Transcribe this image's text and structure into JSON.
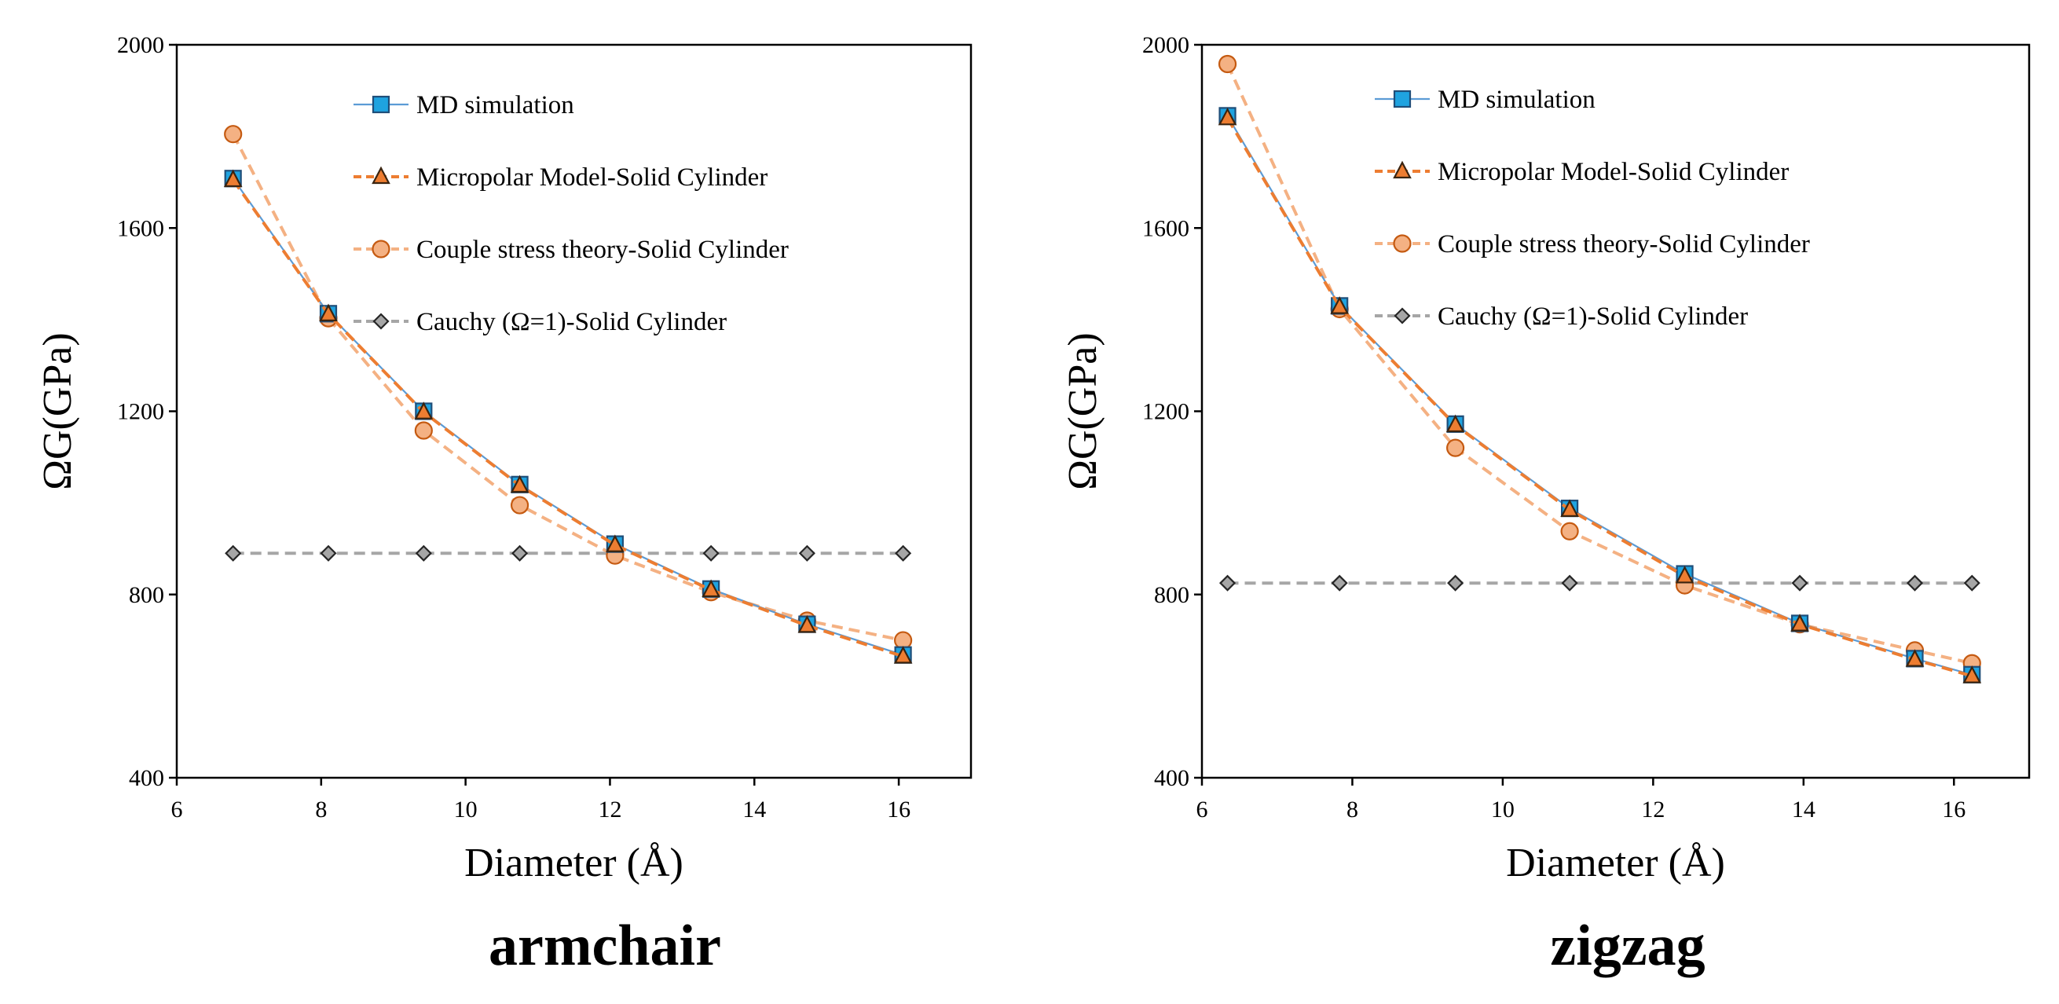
{
  "chart_data": [
    {
      "type": "line",
      "title": "armchair",
      "xlabel": "Diameter (Å)",
      "ylabel": "ΩG(GPa)",
      "xlim": [
        6,
        17
      ],
      "ylim": [
        400,
        2000
      ],
      "xticks": [
        6,
        8,
        10,
        12,
        14,
        16
      ],
      "yticks": [
        400,
        800,
        1200,
        1600,
        2000
      ],
      "grid": false,
      "legend_position": "top-right",
      "series": [
        {
          "name": "MD simulation",
          "style": "md",
          "x": [
            6.78,
            8.1,
            9.42,
            10.75,
            12.07,
            13.4,
            14.73,
            16.06
          ],
          "y": [
            1708,
            1413,
            1200,
            1040,
            910,
            812,
            735,
            668
          ]
        },
        {
          "name": "Micropolar Model-Solid Cylinder",
          "style": "micro",
          "x": [
            6.78,
            8.1,
            9.42,
            10.75,
            12.07,
            13.4,
            14.73,
            16.06
          ],
          "y": [
            1705,
            1412,
            1198,
            1038,
            908,
            810,
            732,
            665
          ]
        },
        {
          "name": "Couple stress theory-Solid Cylinder",
          "style": "couple",
          "x": [
            6.78,
            8.1,
            9.42,
            10.75,
            12.07,
            13.4,
            14.73,
            16.06
          ],
          "y": [
            1805,
            1403,
            1158,
            995,
            885,
            805,
            743,
            700
          ]
        },
        {
          "name": "Cauchy  (Ω=1)-Solid Cylinder",
          "style": "cauchy",
          "x": [
            6.78,
            8.1,
            9.42,
            10.75,
            12.07,
            13.4,
            14.73,
            16.06
          ],
          "y": [
            890,
            890,
            890,
            890,
            890,
            890,
            890,
            890
          ]
        }
      ]
    },
    {
      "type": "line",
      "title": "zigzag",
      "xlabel": "Diameter (Å)",
      "ylabel": "ΩG(GPa)",
      "xlim": [
        6,
        17
      ],
      "ylim": [
        400,
        2000
      ],
      "xticks": [
        6,
        8,
        10,
        12,
        14,
        16
      ],
      "yticks": [
        400,
        800,
        1200,
        1600,
        2000
      ],
      "grid": false,
      "legend_position": "top-right",
      "series": [
        {
          "name": "MD simulation",
          "style": "md",
          "x": [
            6.34,
            7.83,
            9.37,
            10.89,
            12.42,
            13.95,
            15.48,
            16.24
          ],
          "y": [
            1845,
            1430,
            1172,
            988,
            845,
            737,
            660,
            625
          ]
        },
        {
          "name": "Micropolar Model-Solid Cylinder",
          "style": "micro",
          "x": [
            6.34,
            7.83,
            9.37,
            10.89,
            12.42,
            13.95,
            15.48,
            16.24
          ],
          "y": [
            1840,
            1428,
            1170,
            985,
            840,
            735,
            658,
            622
          ]
        },
        {
          "name": "Couple stress theory-Solid Cylinder",
          "style": "couple",
          "x": [
            6.34,
            7.83,
            9.37,
            10.89,
            12.42,
            13.95,
            15.48,
            16.24
          ],
          "y": [
            1958,
            1423,
            1120,
            938,
            820,
            735,
            678,
            650
          ]
        },
        {
          "name": "Cauchy  (Ω=1)-Solid Cylinder",
          "style": "cauchy",
          "x": [
            6.34,
            7.83,
            9.37,
            10.89,
            12.42,
            13.95,
            15.48,
            16.24
          ],
          "y": [
            825,
            825,
            825,
            825,
            825,
            825,
            825,
            825
          ]
        }
      ]
    }
  ],
  "styles": {
    "md": {
      "line": "#5b9bd5",
      "fill": "#1fa3e0",
      "stroke": "#1f4e79",
      "marker": "square",
      "dash": ""
    },
    "micro": {
      "line": "#ed7d31",
      "fill": "#ed7d31",
      "stroke": "#3a2410",
      "marker": "triangle",
      "dash": "14,8"
    },
    "couple": {
      "line": "#f4b183",
      "fill": "#f4b183",
      "stroke": "#c55a11",
      "marker": "circle",
      "dash": "14,8"
    },
    "cauchy": {
      "line": "#a6a6a6",
      "fill": "#a6a6a6",
      "stroke": "#262626",
      "marker": "diamond",
      "dash": "14,8"
    }
  }
}
